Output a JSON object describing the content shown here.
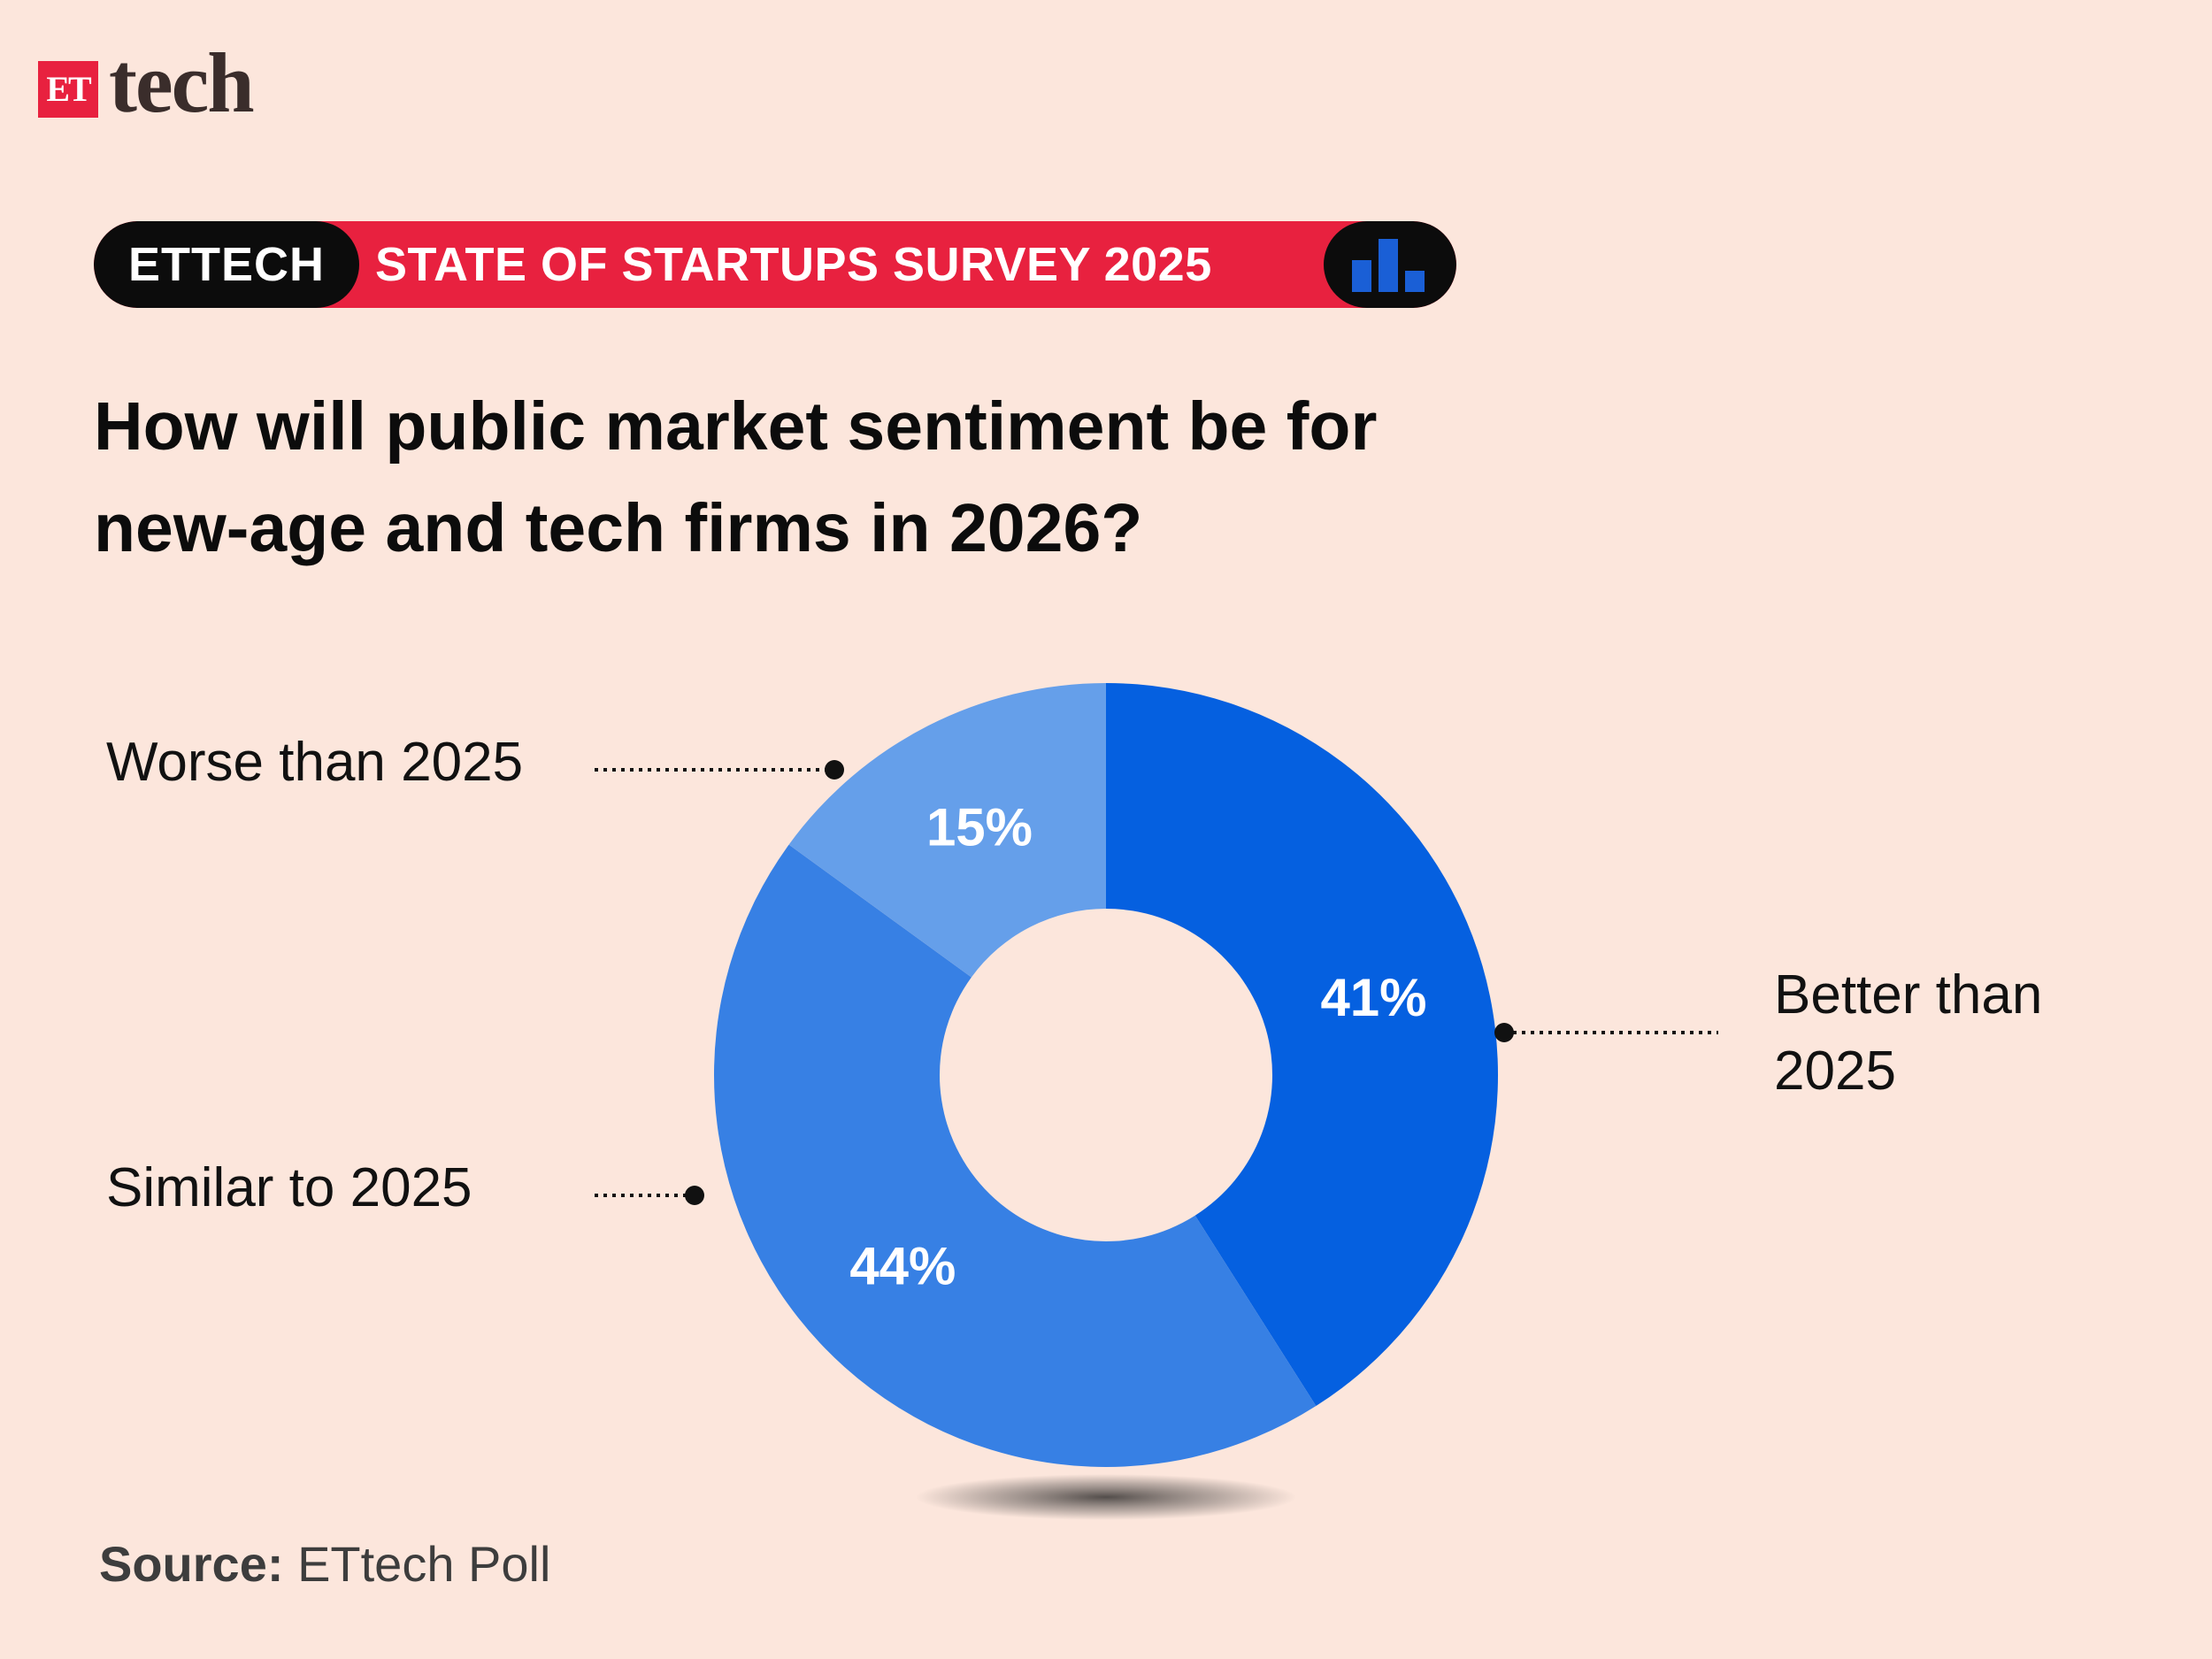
{
  "brand": {
    "badge": "ET",
    "name": "tech"
  },
  "banner": {
    "tag": "ETTECH",
    "title": "STATE OF STARTUPS SURVEY 2025",
    "icon": "bar-chart-icon"
  },
  "question": {
    "line1": "How will public market sentiment be for",
    "line2": "new-age and tech firms in 2026?"
  },
  "source": {
    "label": "Source:",
    "text": "ETtech Poll"
  },
  "colors": {
    "background": "#fce6dc",
    "accent": "#e8213f",
    "better": "#0560e0",
    "similar": "#3780e4",
    "worse": "#659fea"
  },
  "chart_data": {
    "type": "pie",
    "style": "donut",
    "title": "",
    "slices": [
      {
        "label": "Better than 2025",
        "value": 41,
        "display": "41%",
        "color": "#0560e0"
      },
      {
        "label": "Similar to 2025",
        "value": 44,
        "display": "44%",
        "color": "#3780e4"
      },
      {
        "label": "Worse than 2025",
        "value": 15,
        "display": "15%",
        "color": "#659fea"
      }
    ]
  }
}
